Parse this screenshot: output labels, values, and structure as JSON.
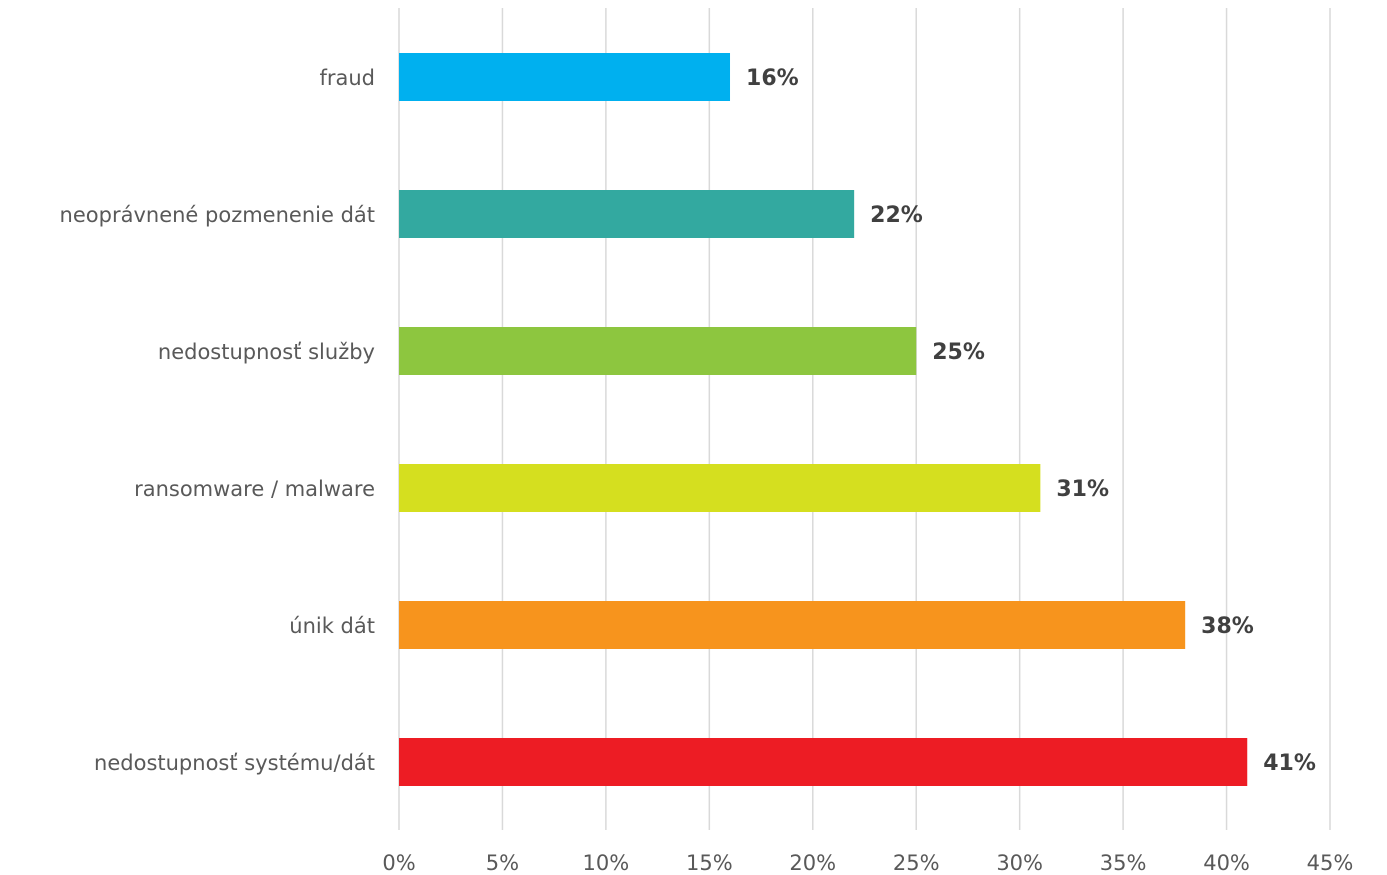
{
  "chart_data": {
    "type": "bar",
    "orientation": "horizontal",
    "title": "",
    "xlabel": "",
    "ylabel": "",
    "xlim": [
      0,
      45
    ],
    "x_ticks": [
      0,
      5,
      10,
      15,
      20,
      25,
      30,
      35,
      40,
      45
    ],
    "x_tick_labels": [
      "0%",
      "5%",
      "10%",
      "15%",
      "20%",
      "25%",
      "30%",
      "35%",
      "40%",
      "45%"
    ],
    "grid": "vertical",
    "legend": "none",
    "categories": [
      "fraud",
      "neoprávnené pozmenenie dát",
      "nedostupnosť služby",
      "ransomware / malware",
      "únik dát",
      "nedostupnosť systému/dát"
    ],
    "values": [
      16,
      22,
      25,
      31,
      38,
      41
    ],
    "value_labels": [
      "16%",
      "22%",
      "25%",
      "31%",
      "38%",
      "41%"
    ],
    "colors": [
      "#00b0ef",
      "#33a9a0",
      "#8dc63f",
      "#d5df1f",
      "#f7941d",
      "#ed1c24"
    ]
  }
}
